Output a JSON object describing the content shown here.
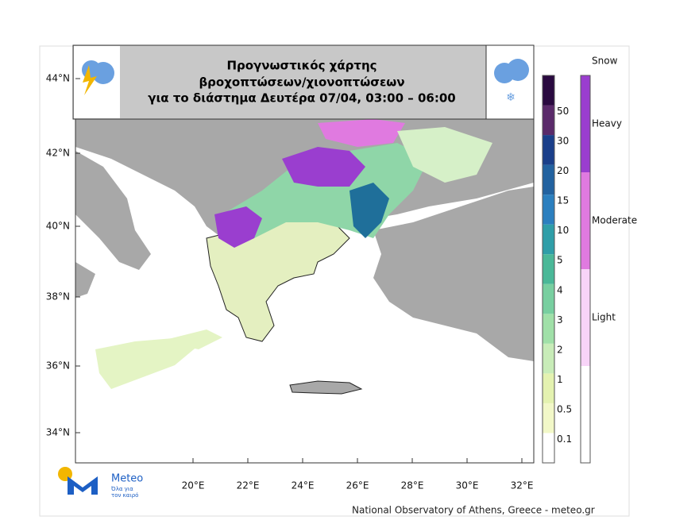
{
  "title": {
    "lines": [
      "Προγνωστικός χάρτης",
      "βροχοπτώσεων/χιονοπτώσεων",
      "για το διάστημα Δευτέρα 07/04, 03:00 – 06:00"
    ]
  },
  "latitude_labels": [
    "44°N",
    "42°N",
    "40°N",
    "38°N",
    "36°N",
    "34°N"
  ],
  "longitude_labels": [
    "20°E",
    "22°E",
    "24°E",
    "26°E",
    "28°E",
    "30°E",
    "32°E"
  ],
  "rain_legend": {
    "levels": [
      0.1,
      0.5,
      1,
      2,
      3,
      4,
      5,
      10,
      15,
      20,
      30,
      50
    ]
  },
  "snow_legend": {
    "title": "Snow",
    "levels": [
      "Heavy",
      "Moderate",
      "Light"
    ]
  },
  "logo": {
    "name": "Meteo",
    "tagline": [
      "Όλα για",
      "τον καιρό"
    ]
  },
  "footer": "National Observatory of Athens, Greece - meteo.gr"
}
